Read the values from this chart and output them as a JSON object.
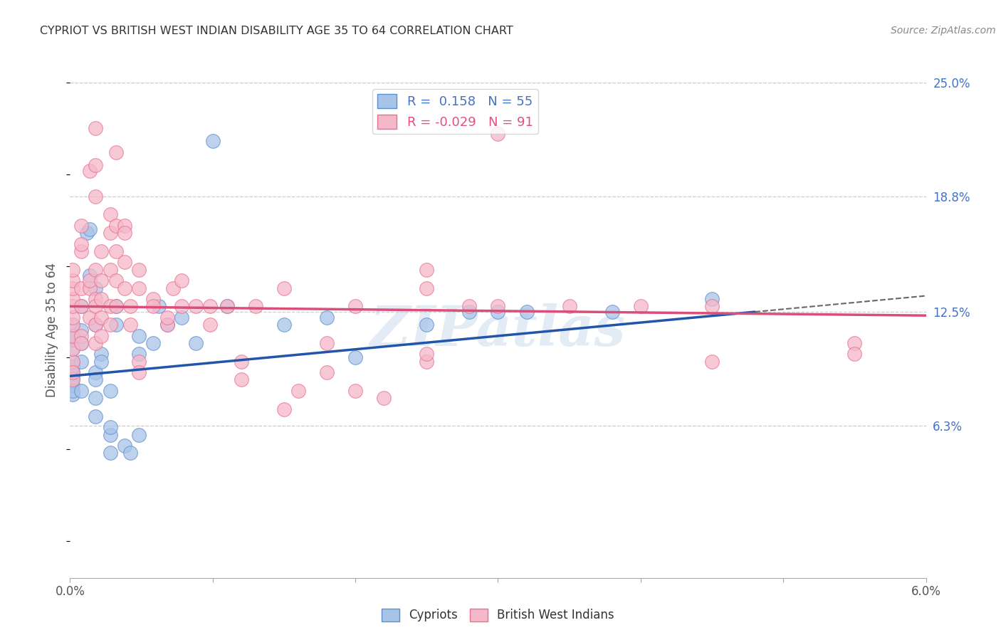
{
  "title": "CYPRIOT VS BRITISH WEST INDIAN DISABILITY AGE 35 TO 64 CORRELATION CHART",
  "source": "Source: ZipAtlas.com",
  "ylabel": "Disability Age 35 to 64",
  "x_min": 0.0,
  "x_max": 6.0,
  "y_min": -2.0,
  "y_max": 25.0,
  "x_ticks": [
    0.0,
    1.0,
    2.0,
    3.0,
    4.0,
    5.0,
    6.0
  ],
  "x_tick_labels": [
    "0.0%",
    "",
    "",
    "",
    "",
    "",
    "6.0%"
  ],
  "y_ticks_right": [
    6.3,
    12.5,
    18.8,
    25.0
  ],
  "y_tick_labels_right": [
    "6.3%",
    "12.5%",
    "18.8%",
    "25.0%"
  ],
  "watermark": "ZIPatlas",
  "blue_color": "#a8c4e8",
  "pink_color": "#f5b8ca",
  "blue_edge": "#5a8fd0",
  "pink_edge": "#e87090",
  "legend_r_blue": "0.158",
  "legend_n_blue": "55",
  "legend_r_pink": "-0.029",
  "legend_n_pink": "91",
  "blue_scatter": [
    [
      0.02,
      9.0
    ],
    [
      0.02,
      9.2
    ],
    [
      0.02,
      8.8
    ],
    [
      0.02,
      9.8
    ],
    [
      0.02,
      10.5
    ],
    [
      0.02,
      11.0
    ],
    [
      0.02,
      9.5
    ],
    [
      0.02,
      11.8
    ],
    [
      0.02,
      11.2
    ],
    [
      0.02,
      8.5
    ],
    [
      0.02,
      8.0
    ],
    [
      0.02,
      8.2
    ],
    [
      0.08,
      12.8
    ],
    [
      0.08,
      9.8
    ],
    [
      0.08,
      10.8
    ],
    [
      0.08,
      11.5
    ],
    [
      0.08,
      8.2
    ],
    [
      0.12,
      16.8
    ],
    [
      0.14,
      17.0
    ],
    [
      0.14,
      14.5
    ],
    [
      0.18,
      11.8
    ],
    [
      0.18,
      13.8
    ],
    [
      0.18,
      9.2
    ],
    [
      0.18,
      8.8
    ],
    [
      0.18,
      7.8
    ],
    [
      0.18,
      6.8
    ],
    [
      0.22,
      10.2
    ],
    [
      0.22,
      9.8
    ],
    [
      0.28,
      8.2
    ],
    [
      0.28,
      5.8
    ],
    [
      0.28,
      6.2
    ],
    [
      0.28,
      4.8
    ],
    [
      0.32,
      12.8
    ],
    [
      0.32,
      11.8
    ],
    [
      0.38,
      5.2
    ],
    [
      0.42,
      4.8
    ],
    [
      0.48,
      5.8
    ],
    [
      0.48,
      10.2
    ],
    [
      0.48,
      11.2
    ],
    [
      0.58,
      10.8
    ],
    [
      0.62,
      12.8
    ],
    [
      0.68,
      11.8
    ],
    [
      0.78,
      12.2
    ],
    [
      0.88,
      10.8
    ],
    [
      1.0,
      21.8
    ],
    [
      1.1,
      12.8
    ],
    [
      1.5,
      11.8
    ],
    [
      1.8,
      12.2
    ],
    [
      2.0,
      10.0
    ],
    [
      2.5,
      11.8
    ],
    [
      2.8,
      12.5
    ],
    [
      3.0,
      12.5
    ],
    [
      3.2,
      12.5
    ],
    [
      3.8,
      12.5
    ],
    [
      4.5,
      13.2
    ]
  ],
  "pink_scatter": [
    [
      0.02,
      9.8
    ],
    [
      0.02,
      10.5
    ],
    [
      0.02,
      11.2
    ],
    [
      0.02,
      11.8
    ],
    [
      0.02,
      12.2
    ],
    [
      0.02,
      12.8
    ],
    [
      0.02,
      13.2
    ],
    [
      0.02,
      13.8
    ],
    [
      0.02,
      14.2
    ],
    [
      0.02,
      14.8
    ],
    [
      0.02,
      8.8
    ],
    [
      0.02,
      9.2
    ],
    [
      0.08,
      15.8
    ],
    [
      0.08,
      16.2
    ],
    [
      0.08,
      17.2
    ],
    [
      0.08,
      13.8
    ],
    [
      0.08,
      12.8
    ],
    [
      0.08,
      11.2
    ],
    [
      0.08,
      10.8
    ],
    [
      0.14,
      20.2
    ],
    [
      0.14,
      13.8
    ],
    [
      0.14,
      14.2
    ],
    [
      0.14,
      12.2
    ],
    [
      0.18,
      20.5
    ],
    [
      0.18,
      22.5
    ],
    [
      0.18,
      18.8
    ],
    [
      0.18,
      14.8
    ],
    [
      0.18,
      13.2
    ],
    [
      0.18,
      12.8
    ],
    [
      0.18,
      11.8
    ],
    [
      0.18,
      10.8
    ],
    [
      0.22,
      15.8
    ],
    [
      0.22,
      14.2
    ],
    [
      0.22,
      13.2
    ],
    [
      0.22,
      12.2
    ],
    [
      0.22,
      11.2
    ],
    [
      0.28,
      16.8
    ],
    [
      0.28,
      17.8
    ],
    [
      0.28,
      14.8
    ],
    [
      0.28,
      12.8
    ],
    [
      0.28,
      11.8
    ],
    [
      0.32,
      21.2
    ],
    [
      0.32,
      17.2
    ],
    [
      0.32,
      15.8
    ],
    [
      0.32,
      14.2
    ],
    [
      0.32,
      12.8
    ],
    [
      0.38,
      17.2
    ],
    [
      0.38,
      16.8
    ],
    [
      0.38,
      15.2
    ],
    [
      0.38,
      13.8
    ],
    [
      0.42,
      12.8
    ],
    [
      0.42,
      11.8
    ],
    [
      0.48,
      14.8
    ],
    [
      0.48,
      13.8
    ],
    [
      0.48,
      9.8
    ],
    [
      0.48,
      9.2
    ],
    [
      0.58,
      13.2
    ],
    [
      0.58,
      12.8
    ],
    [
      0.68,
      11.8
    ],
    [
      0.68,
      12.2
    ],
    [
      0.72,
      13.8
    ],
    [
      0.78,
      14.2
    ],
    [
      0.78,
      12.8
    ],
    [
      0.88,
      12.8
    ],
    [
      0.98,
      12.8
    ],
    [
      0.98,
      11.8
    ],
    [
      1.1,
      12.8
    ],
    [
      1.2,
      9.8
    ],
    [
      1.2,
      8.8
    ],
    [
      1.3,
      12.8
    ],
    [
      1.5,
      13.8
    ],
    [
      1.5,
      7.2
    ],
    [
      1.6,
      8.2
    ],
    [
      1.8,
      10.8
    ],
    [
      1.8,
      9.2
    ],
    [
      2.0,
      12.8
    ],
    [
      2.0,
      8.2
    ],
    [
      2.2,
      7.8
    ],
    [
      2.5,
      14.8
    ],
    [
      2.5,
      13.8
    ],
    [
      2.5,
      9.8
    ],
    [
      2.5,
      10.2
    ],
    [
      2.8,
      12.8
    ],
    [
      3.0,
      22.2
    ],
    [
      3.0,
      12.8
    ],
    [
      3.5,
      12.8
    ],
    [
      4.0,
      12.8
    ],
    [
      4.5,
      9.8
    ],
    [
      4.5,
      12.8
    ],
    [
      5.5,
      10.8
    ],
    [
      5.5,
      10.2
    ]
  ],
  "blue_trend_x0": 0.0,
  "blue_trend_y0": 9.0,
  "blue_trend_x1": 4.8,
  "blue_trend_y1": 12.5,
  "blue_dash_x0": 4.8,
  "blue_dash_x1": 6.0,
  "pink_trend_x0": 0.0,
  "pink_trend_y0": 12.8,
  "pink_trend_x1": 6.0,
  "pink_trend_y1": 12.3,
  "title_color": "#333333",
  "axis_label_color": "#555555",
  "right_tick_color": "#4472c4",
  "grid_color": "#cccccc",
  "background_color": "#ffffff"
}
